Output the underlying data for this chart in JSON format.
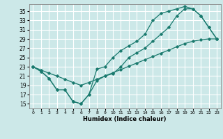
{
  "xlabel": "Humidex (Indice chaleur)",
  "xlim": [
    -0.5,
    23.5
  ],
  "ylim": [
    14.0,
    36.5
  ],
  "yticks": [
    15,
    17,
    19,
    21,
    23,
    25,
    27,
    29,
    31,
    33,
    35
  ],
  "xticks": [
    0,
    1,
    2,
    3,
    4,
    5,
    6,
    7,
    8,
    9,
    10,
    11,
    12,
    13,
    14,
    15,
    16,
    17,
    18,
    19,
    20,
    21,
    22,
    23
  ],
  "bg_color": "#cce8e8",
  "grid_color": "#ffffff",
  "line_color": "#1a7a6e",
  "line_a_x": [
    0,
    1,
    2,
    3,
    4,
    5,
    6,
    7,
    8,
    9,
    10,
    11,
    12,
    13,
    14,
    15,
    16,
    17,
    18,
    19,
    20,
    21,
    22,
    23
  ],
  "line_a_y": [
    23,
    22.3,
    21.6,
    21.0,
    20.3,
    19.6,
    19.0,
    19.6,
    20.3,
    21.0,
    21.7,
    22.4,
    23.1,
    23.8,
    24.5,
    25.2,
    25.9,
    26.6,
    27.3,
    28.0,
    28.5,
    28.8,
    29.0,
    29.0
  ],
  "line_b_x": [
    0,
    1,
    2,
    3,
    4,
    5,
    6,
    7,
    8,
    9,
    10,
    11,
    12,
    13,
    14,
    15,
    16,
    17,
    18,
    19,
    20,
    21,
    22,
    23
  ],
  "line_b_y": [
    23,
    22,
    20.5,
    18,
    18,
    15.5,
    15,
    17,
    22.5,
    23,
    25,
    26.5,
    27.5,
    28.5,
    30,
    33,
    34.5,
    35,
    35.5,
    36,
    35.5,
    34,
    31.5,
    29
  ],
  "line_c_x": [
    0,
    1,
    2,
    3,
    4,
    5,
    6,
    7,
    8,
    9,
    10,
    11,
    12,
    13,
    14,
    15,
    16,
    17,
    18,
    19,
    20,
    21,
    22,
    23
  ],
  "line_c_y": [
    23,
    22,
    20.5,
    18,
    18,
    15.5,
    15,
    17,
    20,
    21,
    21.5,
    23,
    25,
    26,
    27,
    28.5,
    30,
    31.5,
    34,
    35.5,
    35.5,
    34,
    31.5,
    29
  ]
}
